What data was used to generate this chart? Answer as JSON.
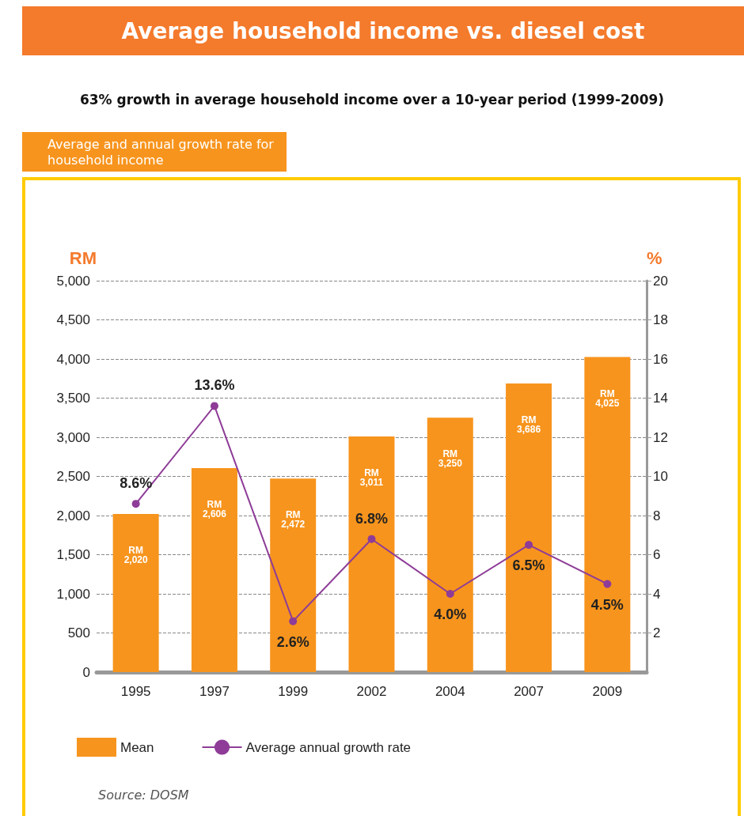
{
  "chart_data": {
    "type": "bar",
    "title": "Average household income vs. diesel cost",
    "subtitle": "63% growth in average household income over a 10-year period (1999-2009)",
    "annotations": [
      "Average and annual growth rate for household income",
      "Source: DOSM"
    ],
    "ylabel": "RM",
    "y2label": "%",
    "categories": [
      "1995",
      "1997",
      "1999",
      "2002",
      "2004",
      "2007",
      "2009"
    ],
    "series": [
      {
        "name": "Mean",
        "color": "#f7941d",
        "values": [
          2020,
          2606,
          2472,
          3011,
          3250,
          3686,
          4025
        ],
        "value_labels": [
          "RM 2,020",
          "RM 2,606",
          "RM 2,472",
          "RM 3,011",
          "RM 3,250",
          "RM 3,686",
          "RM 4,025"
        ]
      },
      {
        "name": "Average annual growth rate",
        "type": "line",
        "axis": "y2",
        "color": "#8e3c97",
        "values": [
          8.6,
          13.6,
          2.6,
          6.8,
          4.0,
          6.5,
          4.5
        ],
        "value_labels": [
          "8.6%",
          "13.6%",
          "2.6%",
          "6.8%",
          "4.0%",
          "6.5%",
          "4.5%"
        ]
      }
    ],
    "ylim": [
      0,
      5000
    ],
    "yticks": [
      0,
      500,
      {
        "value": 1000,
        "label": "1,000"
      },
      {
        "value": 1500,
        "label": "1,500"
      },
      {
        "value": 2000,
        "label": "2,000"
      },
      {
        "value": 2500,
        "label": "2,500"
      },
      {
        "value": 3000,
        "label": "3,000"
      },
      {
        "value": 3500,
        "label": "3,500"
      },
      {
        "value": 4000,
        "label": "4,000"
      },
      {
        "value": 4500,
        "label": "4,500"
      },
      {
        "value": 5000,
        "label": "5,000"
      }
    ],
    "y2lim": [
      0,
      20
    ],
    "y2ticks": [
      2,
      4,
      6,
      8,
      10,
      12,
      14,
      16,
      18,
      20
    ],
    "grid": "y",
    "legend": "bottom left",
    "marker": "circle",
    "line_style": "solid"
  }
}
